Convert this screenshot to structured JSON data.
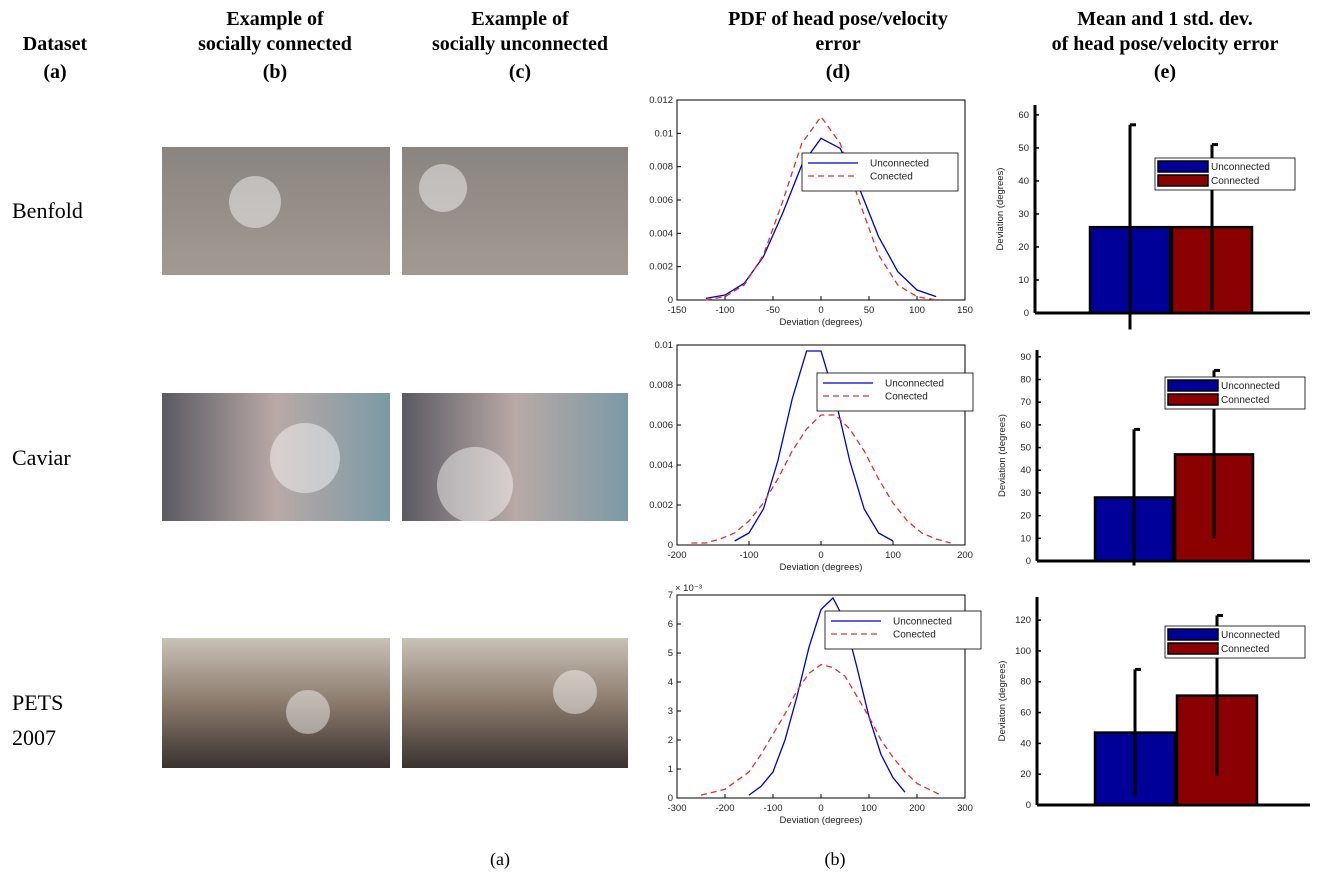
{
  "headers": [
    [
      "Dataset",
      "(a)"
    ],
    [
      "Example of",
      "socially connected",
      "(b)"
    ],
    [
      "Example of",
      "socially unconnected",
      "(c)"
    ],
    [
      "PDF of head pose/velocity",
      "error",
      "(d)"
    ],
    [
      "Mean and 1 std. dev.",
      "of head pose/velocity error",
      "(e)"
    ]
  ],
  "datasets": [
    [
      "Benfold"
    ],
    [
      "Caviar"
    ],
    [
      "PETS",
      "2007"
    ]
  ],
  "captions": [
    "(a)",
    "(b)"
  ],
  "chart_data": [
    {
      "type": "line",
      "xlabel": "Deviation (degrees)",
      "x": [
        -120,
        -100,
        -80,
        -60,
        -40,
        -20,
        0,
        20,
        40,
        60,
        80,
        100,
        120
      ],
      "series": [
        {
          "name": "Unconnected",
          "color": "#0000cc",
          "linestyle": "solid",
          "values": [
            0.0001,
            0.0003,
            0.001,
            0.0026,
            0.0052,
            0.0081,
            0.0097,
            0.0091,
            0.0067,
            0.0038,
            0.0017,
            0.0006,
            0.0002
          ]
        },
        {
          "name": "Conected",
          "color": "#e03030",
          "linestyle": "dashed",
          "values": [
            0,
            0.0002,
            0.0009,
            0.0027,
            0.0059,
            0.0094,
            0.011,
            0.0094,
            0.0059,
            0.0027,
            0.0009,
            0.0002,
            0
          ]
        }
      ],
      "xlim": [
        -150,
        150
      ],
      "xticks": [
        -150,
        -100,
        -50,
        0,
        50,
        100,
        150
      ],
      "ylim": [
        0,
        0.012
      ],
      "yticks": [
        0,
        0.002,
        0.004,
        0.006,
        0.008,
        0.01,
        0.012
      ]
    },
    {
      "type": "line",
      "xlabel": "Deviation (degrees)",
      "x": [
        -180,
        -160,
        -140,
        -120,
        -100,
        -80,
        -60,
        -40,
        -20,
        0,
        20,
        40,
        60,
        80,
        100,
        120,
        140,
        160,
        180
      ],
      "series": [
        {
          "name": "Unconnected",
          "color": "#0000cc",
          "linestyle": "solid",
          "values": [
            null,
            null,
            null,
            0.0002,
            0.0006,
            0.0018,
            0.0042,
            0.0073,
            0.0097,
            0.0097,
            0.0073,
            0.0042,
            0.0018,
            0.0006,
            0.0002,
            null,
            null,
            null,
            null
          ]
        },
        {
          "name": "Conected",
          "color": "#e03030",
          "linestyle": "dashed",
          "values": [
            0.0001,
            0.0001,
            0.0003,
            0.0006,
            0.0012,
            0.0021,
            0.0033,
            0.0047,
            0.0058,
            0.0065,
            0.0065,
            0.0058,
            0.0047,
            0.0033,
            0.0021,
            0.0012,
            0.0006,
            0.0003,
            0.0001
          ]
        }
      ],
      "xlim": [
        -200,
        200
      ],
      "xticks": [
        -200,
        -100,
        0,
        100,
        200
      ],
      "ylim": [
        0,
        0.01
      ],
      "yticks": [
        0,
        0.002,
        0.004,
        0.006,
        0.008,
        0.01
      ]
    },
    {
      "type": "line",
      "xlabel": "Deviation (degrees)",
      "y_scale_label": "× 10⁻³",
      "x": [
        -250,
        -225,
        -200,
        -175,
        -150,
        -125,
        -100,
        -75,
        -50,
        -25,
        0,
        25,
        50,
        75,
        100,
        125,
        150,
        175,
        200,
        225,
        250
      ],
      "series": [
        {
          "name": "Unconnected",
          "color": "#0000cc",
          "linestyle": "solid",
          "values": [
            null,
            null,
            null,
            null,
            0.1,
            0.4,
            0.9,
            2.0,
            3.5,
            5.2,
            6.5,
            6.9,
            6.1,
            4.5,
            2.8,
            1.5,
            0.7,
            0.2,
            null,
            null,
            null
          ]
        },
        {
          "name": "Conected",
          "color": "#e03030",
          "linestyle": "dashed",
          "values": [
            0.1,
            0.2,
            0.3,
            0.6,
            0.9,
            1.5,
            2.2,
            2.9,
            3.7,
            4.3,
            4.6,
            4.5,
            4.2,
            3.5,
            2.8,
            2.0,
            1.4,
            0.9,
            0.5,
            0.3,
            0.1
          ]
        }
      ],
      "xlim": [
        -300,
        300
      ],
      "xticks": [
        -300,
        -200,
        -100,
        0,
        100,
        200,
        300
      ],
      "ylim": [
        0,
        7
      ],
      "yticks": [
        0,
        1,
        2,
        3,
        4,
        5,
        6,
        7
      ]
    },
    {
      "type": "bar",
      "ylabel": "Deviation (degrees)",
      "series": [
        {
          "name": "Unconnected",
          "color": "#000099",
          "values": [
            26
          ],
          "errors": [
            31
          ]
        },
        {
          "name": "Connected",
          "color": "#8b0000",
          "values": [
            26
          ],
          "errors": [
            25
          ]
        }
      ],
      "ylim": [
        0,
        63
      ],
      "yticks": [
        0,
        10,
        20,
        30,
        40,
        50,
        60
      ]
    },
    {
      "type": "bar",
      "ylabel": "Deviation (degrees)",
      "series": [
        {
          "name": "Unconnected",
          "color": "#000099",
          "values": [
            28
          ],
          "errors": [
            30
          ]
        },
        {
          "name": "Connected",
          "color": "#8b0000",
          "values": [
            47
          ],
          "errors": [
            37
          ]
        }
      ],
      "ylim": [
        0,
        93
      ],
      "yticks": [
        0,
        10,
        20,
        30,
        40,
        50,
        60,
        70,
        80,
        90
      ]
    },
    {
      "type": "bar",
      "ylabel": "Deviaton (degrees)",
      "series": [
        {
          "name": "Unconnected",
          "color": "#000099",
          "values": [
            47
          ],
          "errors": [
            41
          ]
        },
        {
          "name": "Connected",
          "color": "#8b0000",
          "values": [
            71
          ],
          "errors": [
            52
          ]
        }
      ],
      "ylim": [
        0,
        135
      ],
      "yticks": [
        0,
        20,
        40,
        60,
        80,
        100,
        120
      ]
    }
  ]
}
